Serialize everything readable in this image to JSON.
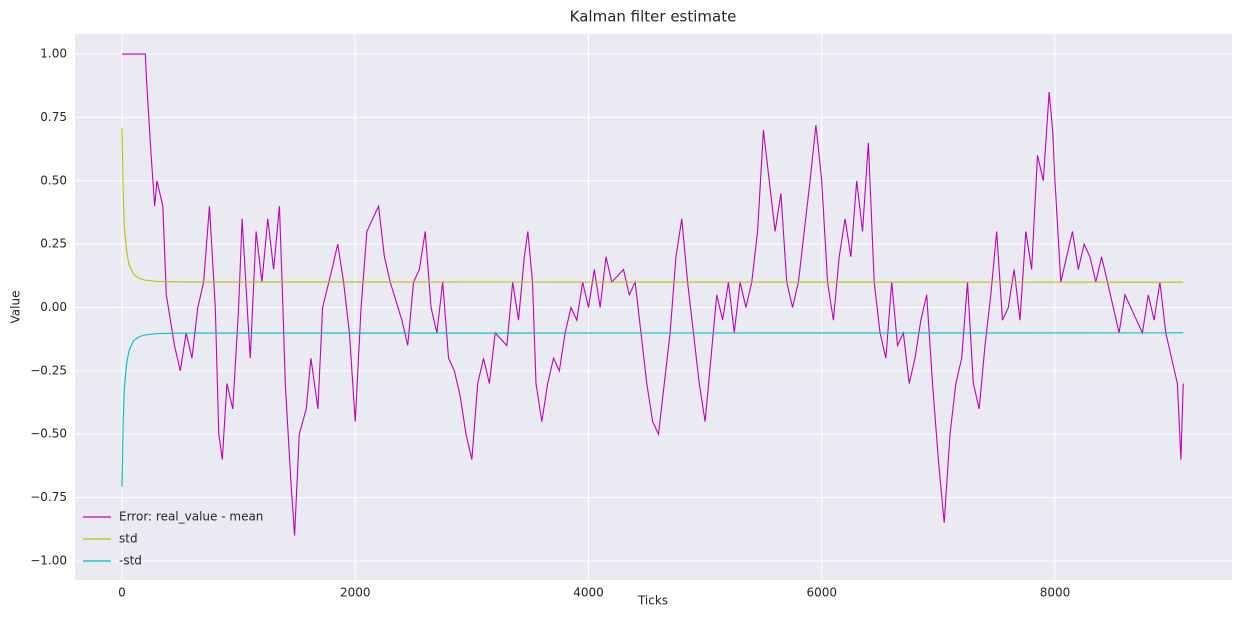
{
  "chart_data": {
    "type": "line",
    "title": "Kalman filter estimate",
    "xlabel": "Ticks",
    "ylabel": "Value",
    "xlim": [
      -403,
      9518
    ],
    "ylim": [
      -1.075,
      1.079
    ],
    "xticks": [
      0,
      2000,
      4000,
      6000,
      8000
    ],
    "yticks": [
      {
        "value": -1,
        "label": "−1.00"
      },
      {
        "value": -0.75,
        "label": "−0.75"
      },
      {
        "value": -0.5,
        "label": "−0.50"
      },
      {
        "value": -0.25,
        "label": "−0.25"
      },
      {
        "value": 0,
        "label": "0.00"
      },
      {
        "value": 0.25,
        "label": "0.25"
      },
      {
        "value": 0.5,
        "label": "0.50"
      },
      {
        "value": 0.75,
        "label": "0.75"
      },
      {
        "value": 1,
        "label": "1.00"
      }
    ],
    "grid": true,
    "legend": "lower left",
    "series": [
      {
        "name": "Error: real_value - mean",
        "color": "#bf00bf",
        "x": [
          0,
          200,
          210,
          250,
          280,
          300,
          350,
          380,
          450,
          500,
          550,
          600,
          650,
          700,
          750,
          800,
          830,
          860,
          900,
          950,
          1000,
          1030,
          1080,
          1100,
          1150,
          1200,
          1250,
          1300,
          1350,
          1380,
          1400,
          1450,
          1480,
          1520,
          1580,
          1620,
          1680,
          1720,
          1800,
          1850,
          1900,
          1950,
          2000,
          2050,
          2100,
          2150,
          2200,
          2250,
          2300,
          2400,
          2450,
          2500,
          2550,
          2600,
          2650,
          2700,
          2750,
          2800,
          2850,
          2900,
          2950,
          3000,
          3050,
          3100,
          3150,
          3200,
          3300,
          3350,
          3400,
          3450,
          3480,
          3520,
          3550,
          3600,
          3650,
          3700,
          3750,
          3800,
          3850,
          3900,
          3950,
          4000,
          4050,
          4100,
          4150,
          4200,
          4300,
          4350,
          4400,
          4450,
          4500,
          4550,
          4600,
          4650,
          4700,
          4750,
          4800,
          4850,
          4900,
          4950,
          5000,
          5050,
          5100,
          5150,
          5200,
          5250,
          5300,
          5350,
          5400,
          5450,
          5500,
          5550,
          5600,
          5650,
          5700,
          5750,
          5800,
          5850,
          5900,
          5950,
          6000,
          6050,
          6100,
          6150,
          6200,
          6250,
          6300,
          6350,
          6400,
          6450,
          6500,
          6550,
          6600,
          6650,
          6700,
          6750,
          6800,
          6850,
          6900,
          6950,
          7000,
          7050,
          7100,
          7150,
          7200,
          7250,
          7300,
          7350,
          7400,
          7450,
          7500,
          7550,
          7600,
          7650,
          7700,
          7750,
          7800,
          7850,
          7900,
          7950,
          7980,
          8000,
          8050,
          8100,
          8150,
          8200,
          8250,
          8300,
          8350,
          8400,
          8450,
          8500,
          8550,
          8600,
          8650,
          8700,
          8750,
          8800,
          8850,
          8900,
          8950,
          9000,
          9050,
          9080,
          9100
        ],
        "values": [
          1.0,
          1.0,
          0.9,
          0.6,
          0.4,
          0.5,
          0.4,
          0.05,
          -0.15,
          -0.25,
          -0.1,
          -0.2,
          0.0,
          0.1,
          0.4,
          0.0,
          -0.5,
          -0.6,
          -0.3,
          -0.4,
          0.0,
          0.35,
          -0.05,
          -0.2,
          0.3,
          0.1,
          0.35,
          0.15,
          0.4,
          0.0,
          -0.3,
          -0.7,
          -0.9,
          -0.5,
          -0.4,
          -0.2,
          -0.4,
          0.0,
          0.15,
          0.25,
          0.1,
          -0.1,
          -0.45,
          0.0,
          0.3,
          0.35,
          0.4,
          0.2,
          0.1,
          -0.05,
          -0.15,
          0.1,
          0.15,
          0.3,
          0.0,
          -0.1,
          0.1,
          -0.2,
          -0.25,
          -0.35,
          -0.5,
          -0.6,
          -0.3,
          -0.2,
          -0.3,
          -0.1,
          -0.15,
          0.1,
          -0.05,
          0.2,
          0.3,
          0.1,
          -0.3,
          -0.45,
          -0.3,
          -0.2,
          -0.25,
          -0.1,
          0.0,
          -0.05,
          0.1,
          0.0,
          0.15,
          0.0,
          0.2,
          0.1,
          0.15,
          0.05,
          0.1,
          -0.1,
          -0.3,
          -0.45,
          -0.5,
          -0.3,
          -0.1,
          0.2,
          0.35,
          0.1,
          -0.1,
          -0.3,
          -0.45,
          -0.2,
          0.05,
          -0.05,
          0.1,
          -0.1,
          0.1,
          0.0,
          0.1,
          0.3,
          0.7,
          0.5,
          0.3,
          0.45,
          0.1,
          0.0,
          0.1,
          0.3,
          0.5,
          0.72,
          0.5,
          0.1,
          -0.05,
          0.2,
          0.35,
          0.2,
          0.5,
          0.3,
          0.65,
          0.1,
          -0.1,
          -0.2,
          0.1,
          -0.15,
          -0.1,
          -0.3,
          -0.2,
          -0.05,
          0.05,
          -0.3,
          -0.6,
          -0.85,
          -0.5,
          -0.3,
          -0.2,
          0.1,
          -0.3,
          -0.4,
          -0.15,
          0.05,
          0.3,
          -0.05,
          0.0,
          0.15,
          -0.05,
          0.3,
          0.15,
          0.6,
          0.5,
          0.85,
          0.7,
          0.5,
          0.1,
          0.2,
          0.3,
          0.15,
          0.25,
          0.2,
          0.1,
          0.2,
          0.1,
          0.0,
          -0.1,
          0.05,
          0.0,
          -0.05,
          -0.1,
          0.05,
          -0.05,
          0.1,
          -0.1,
          -0.2,
          -0.3,
          -0.6,
          -0.3
        ]
      },
      {
        "name": "std",
        "color": "#bfbf00",
        "x": [
          0,
          10,
          20,
          40,
          60,
          100,
          150,
          200,
          300,
          500,
          9100
        ],
        "values": [
          0.707,
          0.45,
          0.32,
          0.22,
          0.17,
          0.13,
          0.115,
          0.108,
          0.103,
          0.101,
          0.1
        ]
      },
      {
        "name": "-std",
        "color": "#00bfbf",
        "x": [
          0,
          10,
          20,
          40,
          60,
          100,
          150,
          200,
          300,
          500,
          9100
        ],
        "values": [
          -0.707,
          -0.45,
          -0.32,
          -0.22,
          -0.17,
          -0.13,
          -0.115,
          -0.108,
          -0.103,
          -0.101,
          -0.1
        ]
      }
    ]
  }
}
